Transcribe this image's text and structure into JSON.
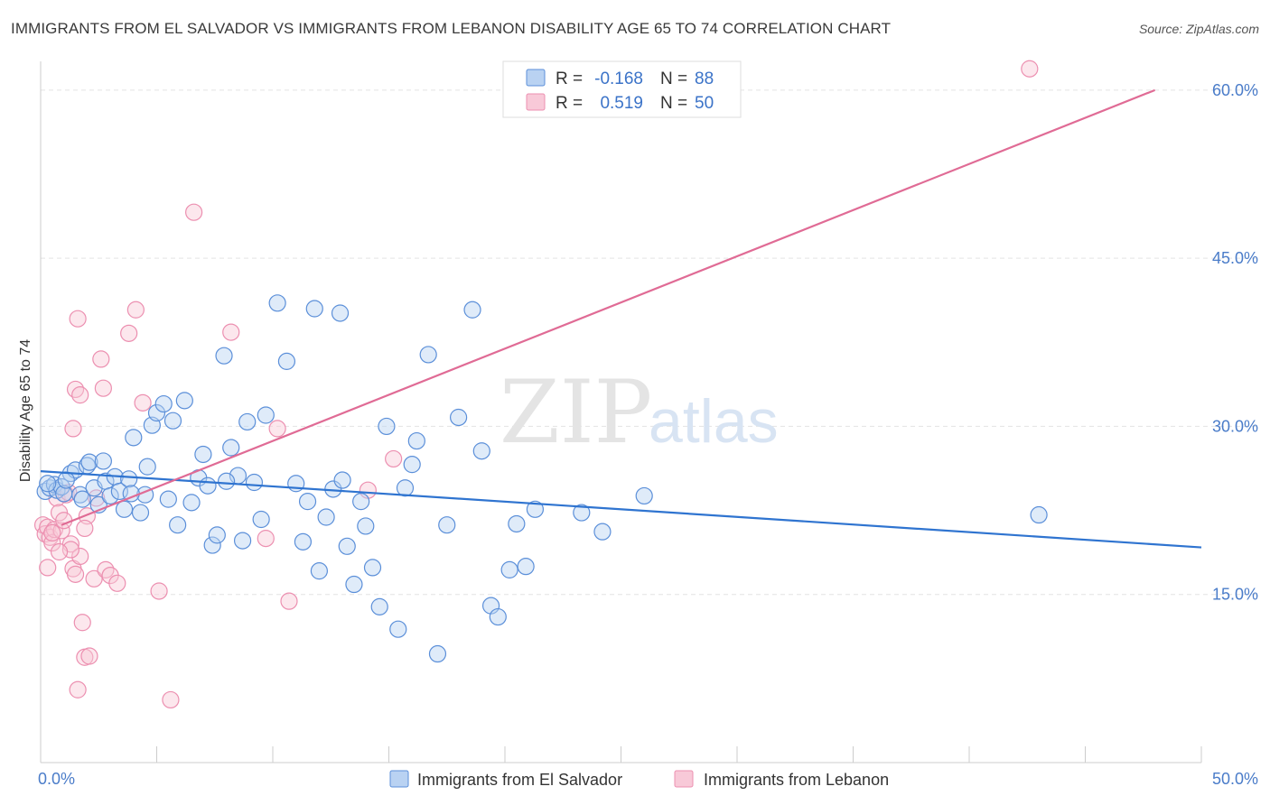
{
  "title": "IMMIGRANTS FROM EL SALVADOR VS IMMIGRANTS FROM LEBANON DISABILITY AGE 65 TO 74 CORRELATION CHART",
  "source": "Source: ZipAtlas.com",
  "watermark": {
    "part1": "ZIP",
    "part2": "atlas"
  },
  "colors": {
    "blue": "#5b8fd9",
    "blue_fill": "#b9d2f2",
    "blue_line": "#2f74d0",
    "pink": "#ec8fb0",
    "pink_fill": "#f8c9d8",
    "pink_line": "#e06b95",
    "tick_label": "#4a7cc9",
    "grid": "#e3e3e3"
  },
  "legend": {
    "r_label": "R =",
    "n_label": "N =",
    "blue": {
      "r": "-0.168",
      "n": "88"
    },
    "pink": {
      "r": "0.519",
      "n": "50"
    }
  },
  "chart_data": {
    "type": "scatter",
    "title": "IMMIGRANTS FROM EL SALVADOR VS IMMIGRANTS FROM LEBANON DISABILITY AGE 65 TO 74 CORRELATION CHART",
    "xlabel": "",
    "ylabel": "Disability Age 65 to 74",
    "xlim": [
      0,
      50
    ],
    "ylim": [
      0,
      62
    ],
    "x_tick_labels": [
      "0.0%",
      "50.0%"
    ],
    "y_ticks": [
      {
        "value": 15,
        "label": "15.0%"
      },
      {
        "value": 30,
        "label": "30.0%"
      },
      {
        "value": 45,
        "label": "45.0%"
      },
      {
        "value": 60,
        "label": "60.0%"
      }
    ],
    "grid": true,
    "legend_position": "top-center",
    "series": [
      {
        "name": "Immigrants from El Salvador",
        "color": "#5b8fd9",
        "trend": {
          "x": [
            0,
            50
          ],
          "y": [
            26.0,
            19.2
          ]
        },
        "points": [
          [
            0.2,
            24.2
          ],
          [
            0.4,
            24.5
          ],
          [
            0.6,
            24.8
          ],
          [
            0.7,
            24.3
          ],
          [
            0.9,
            24.6
          ],
          [
            1.0,
            24.0
          ],
          [
            1.3,
            25.8
          ],
          [
            1.5,
            26.1
          ],
          [
            1.7,
            23.9
          ],
          [
            1.8,
            23.5
          ],
          [
            2.0,
            26.5
          ],
          [
            2.1,
            26.8
          ],
          [
            2.3,
            24.5
          ],
          [
            2.5,
            23.0
          ],
          [
            2.7,
            26.9
          ],
          [
            2.8,
            25.1
          ],
          [
            3.0,
            23.8
          ],
          [
            3.2,
            25.5
          ],
          [
            3.4,
            24.2
          ],
          [
            3.6,
            22.6
          ],
          [
            3.8,
            25.3
          ],
          [
            4.0,
            29.0
          ],
          [
            4.3,
            22.3
          ],
          [
            4.5,
            23.9
          ],
          [
            4.6,
            26.4
          ],
          [
            4.8,
            30.1
          ],
          [
            5.0,
            31.2
          ],
          [
            5.3,
            32.0
          ],
          [
            5.5,
            23.5
          ],
          [
            5.7,
            30.5
          ],
          [
            5.9,
            21.2
          ],
          [
            6.2,
            32.3
          ],
          [
            6.5,
            23.2
          ],
          [
            6.8,
            25.4
          ],
          [
            7.0,
            27.5
          ],
          [
            7.2,
            24.7
          ],
          [
            7.4,
            19.4
          ],
          [
            7.6,
            20.3
          ],
          [
            7.9,
            36.3
          ],
          [
            8.2,
            28.1
          ],
          [
            8.5,
            25.6
          ],
          [
            8.7,
            19.8
          ],
          [
            8.9,
            30.4
          ],
          [
            9.2,
            25.0
          ],
          [
            9.5,
            21.7
          ],
          [
            9.7,
            31.0
          ],
          [
            10.2,
            41.0
          ],
          [
            10.6,
            35.8
          ],
          [
            11.0,
            24.9
          ],
          [
            11.3,
            19.7
          ],
          [
            11.5,
            23.3
          ],
          [
            11.8,
            40.5
          ],
          [
            12.0,
            17.1
          ],
          [
            12.3,
            21.9
          ],
          [
            12.6,
            24.4
          ],
          [
            12.9,
            40.1
          ],
          [
            13.2,
            19.3
          ],
          [
            13.5,
            15.9
          ],
          [
            13.8,
            23.3
          ],
          [
            14.0,
            21.1
          ],
          [
            14.3,
            17.4
          ],
          [
            14.6,
            13.9
          ],
          [
            14.9,
            30.0
          ],
          [
            15.4,
            11.9
          ],
          [
            15.7,
            24.5
          ],
          [
            16.2,
            28.7
          ],
          [
            16.7,
            36.4
          ],
          [
            17.1,
            9.7
          ],
          [
            17.5,
            21.2
          ],
          [
            18.0,
            30.8
          ],
          [
            18.6,
            40.4
          ],
          [
            19.0,
            27.8
          ],
          [
            19.4,
            14.0
          ],
          [
            19.7,
            13.0
          ],
          [
            20.2,
            17.2
          ],
          [
            20.5,
            21.3
          ],
          [
            20.9,
            17.5
          ],
          [
            21.3,
            22.6
          ],
          [
            23.3,
            22.3
          ],
          [
            24.2,
            20.6
          ],
          [
            26.0,
            23.8
          ],
          [
            43.0,
            22.1
          ],
          [
            0.3,
            24.9
          ],
          [
            1.1,
            25.2
          ],
          [
            3.9,
            24.0
          ],
          [
            8.0,
            25.1
          ],
          [
            16.0,
            26.6
          ],
          [
            13.0,
            25.2
          ]
        ]
      },
      {
        "name": "Immigrants from Lebanon",
        "color": "#ec8fb0",
        "trend": {
          "x": [
            0.9,
            48.0
          ],
          "y": [
            21.2,
            60.0
          ]
        },
        "points": [
          [
            0.1,
            21.2
          ],
          [
            0.2,
            20.4
          ],
          [
            0.3,
            21.0
          ],
          [
            0.4,
            20.1
          ],
          [
            0.5,
            19.6
          ],
          [
            0.6,
            20.8
          ],
          [
            0.7,
            23.6
          ],
          [
            0.8,
            22.3
          ],
          [
            0.9,
            20.7
          ],
          [
            1.0,
            21.6
          ],
          [
            1.1,
            23.9
          ],
          [
            1.2,
            24.1
          ],
          [
            1.3,
            19.5
          ],
          [
            1.4,
            17.3
          ],
          [
            1.5,
            16.8
          ],
          [
            1.7,
            18.4
          ],
          [
            1.8,
            12.5
          ],
          [
            1.9,
            9.4
          ],
          [
            2.0,
            22.0
          ],
          [
            2.1,
            9.5
          ],
          [
            2.3,
            16.4
          ],
          [
            2.6,
            36.0
          ],
          [
            2.8,
            17.2
          ],
          [
            3.0,
            16.7
          ],
          [
            3.3,
            16.0
          ],
          [
            3.8,
            38.3
          ],
          [
            4.1,
            40.4
          ],
          [
            4.4,
            32.1
          ],
          [
            5.1,
            15.3
          ],
          [
            5.6,
            5.6
          ],
          [
            6.6,
            49.1
          ],
          [
            8.2,
            38.4
          ],
          [
            9.7,
            20.0
          ],
          [
            10.2,
            29.8
          ],
          [
            10.7,
            14.4
          ],
          [
            14.1,
            24.3
          ],
          [
            15.2,
            27.1
          ],
          [
            42.6,
            61.9
          ],
          [
            1.6,
            39.6
          ],
          [
            1.5,
            33.3
          ],
          [
            1.4,
            29.8
          ],
          [
            1.7,
            32.8
          ],
          [
            2.7,
            33.4
          ],
          [
            0.3,
            17.4
          ],
          [
            1.3,
            19.0
          ],
          [
            1.6,
            6.5
          ],
          [
            0.5,
            20.5
          ],
          [
            0.8,
            18.8
          ],
          [
            1.9,
            20.9
          ],
          [
            2.4,
            23.6
          ]
        ]
      }
    ]
  }
}
